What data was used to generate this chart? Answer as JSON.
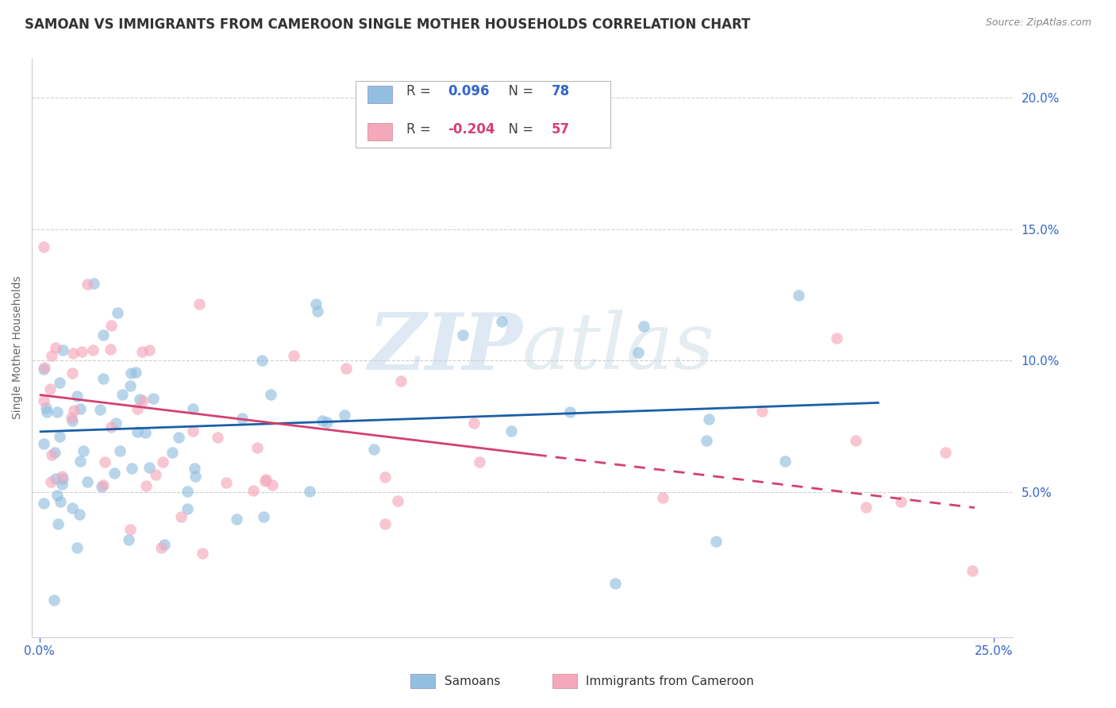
{
  "title": "SAMOAN VS IMMIGRANTS FROM CAMEROON SINGLE MOTHER HOUSEHOLDS CORRELATION CHART",
  "source": "Source: ZipAtlas.com",
  "ylabel": "Single Mother Households",
  "xlim": [
    -0.002,
    0.255
  ],
  "ylim": [
    -0.005,
    0.215
  ],
  "x_tick_positions": [
    0.0,
    0.25
  ],
  "x_tick_labels": [
    "0.0%",
    "25.0%"
  ],
  "y_tick_positions": [
    0.05,
    0.1,
    0.15,
    0.2
  ],
  "y_tick_labels": [
    "5.0%",
    "10.0%",
    "15.0%",
    "20.0%"
  ],
  "samoan_color": "#92bfe0",
  "cameroon_color": "#f5a8bc",
  "samoan_line_color": "#1a5fa8",
  "cameroon_line_color": "#d44070",
  "samoan_R": "0.096",
  "samoan_N": "78",
  "cameroon_R": "-0.204",
  "cameroon_N": "57",
  "legend_label_samoan": "Samoans",
  "legend_label_cameroon": "Immigrants from Cameroon",
  "watermark_zip": "ZIP",
  "watermark_atlas": "atlas",
  "background_color": "#ffffff",
  "grid_color": "#d0d0d0",
  "title_color": "#333333",
  "source_color": "#888888",
  "tick_color": "#3366cc",
  "ylabel_color": "#666666",
  "legend_text_color": "#333333",
  "legend_r_color": "#3366cc",
  "legend_r_pink_color": "#d44070",
  "title_fontsize": 12,
  "source_fontsize": 9,
  "axis_label_fontsize": 10,
  "tick_fontsize": 11,
  "legend_fontsize": 12
}
